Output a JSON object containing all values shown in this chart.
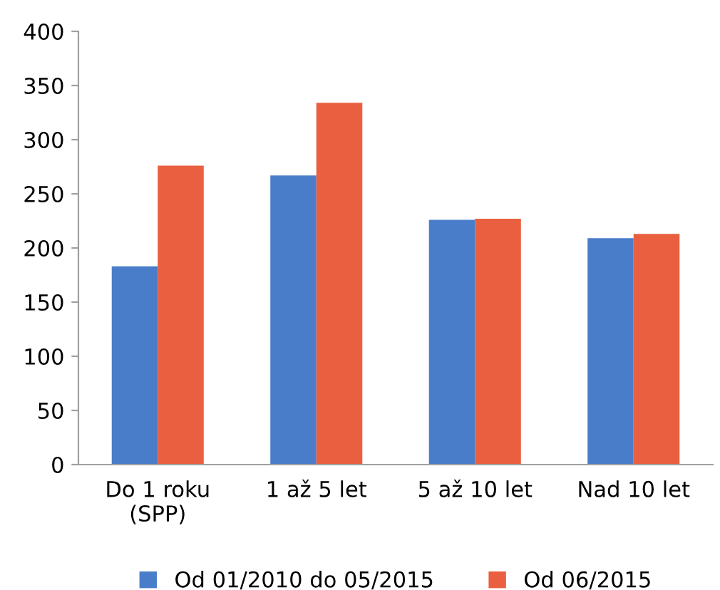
{
  "chart_data": {
    "type": "bar",
    "categories": [
      "Do 1 roku\n(SPP)",
      "1 až 5 let",
      "5 až 10 let",
      "Nad 10 let"
    ],
    "series": [
      {
        "name": "Od 01/2010 do 05/2015",
        "color": "#4a7dc9",
        "values": [
          183,
          267,
          226,
          209
        ]
      },
      {
        "name": "Od 06/2015",
        "color": "#e95f3f",
        "values": [
          276,
          334,
          227,
          213
        ]
      }
    ],
    "ylim": [
      0,
      400
    ],
    "yticks": [
      0,
      50,
      100,
      150,
      200,
      250,
      300,
      350,
      400
    ],
    "grid": false,
    "legend": "bottom"
  }
}
